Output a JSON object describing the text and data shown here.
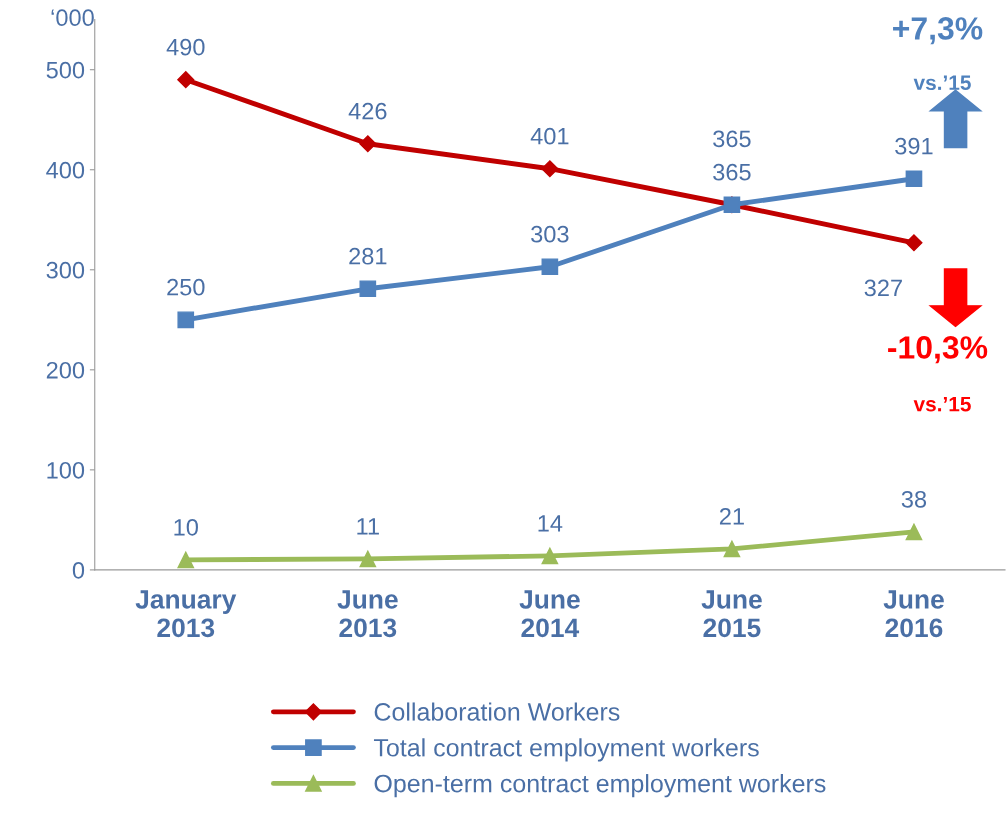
{
  "chart_data": {
    "type": "line",
    "ylabel": "‘000",
    "categories": [
      "January\n2013",
      "June\n2013",
      "June\n2014",
      "June\n2015",
      "June\n2016"
    ],
    "series": [
      {
        "name": "Collaboration Workers",
        "color": "#c00000",
        "marker": "diamond",
        "values": [
          490,
          426,
          401,
          365,
          327
        ]
      },
      {
        "name": "Total contract employment workers",
        "color": "#4f81bd",
        "marker": "square",
        "values": [
          250,
          281,
          303,
          365,
          391
        ]
      },
      {
        "name": "Open-term contract employment workers",
        "color": "#9bbb59",
        "marker": "triangle",
        "values": [
          10,
          11,
          14,
          21,
          38
        ]
      }
    ],
    "ylim": [
      0,
      550
    ],
    "yticks": [
      0,
      100,
      200,
      300,
      400,
      500
    ],
    "grid": false,
    "legend": "bottom",
    "data_labels": true,
    "line_style": "solid",
    "annotations": [
      "+7,3%",
      "vs.’15",
      "-10,3%",
      "vs.’15"
    ]
  }
}
